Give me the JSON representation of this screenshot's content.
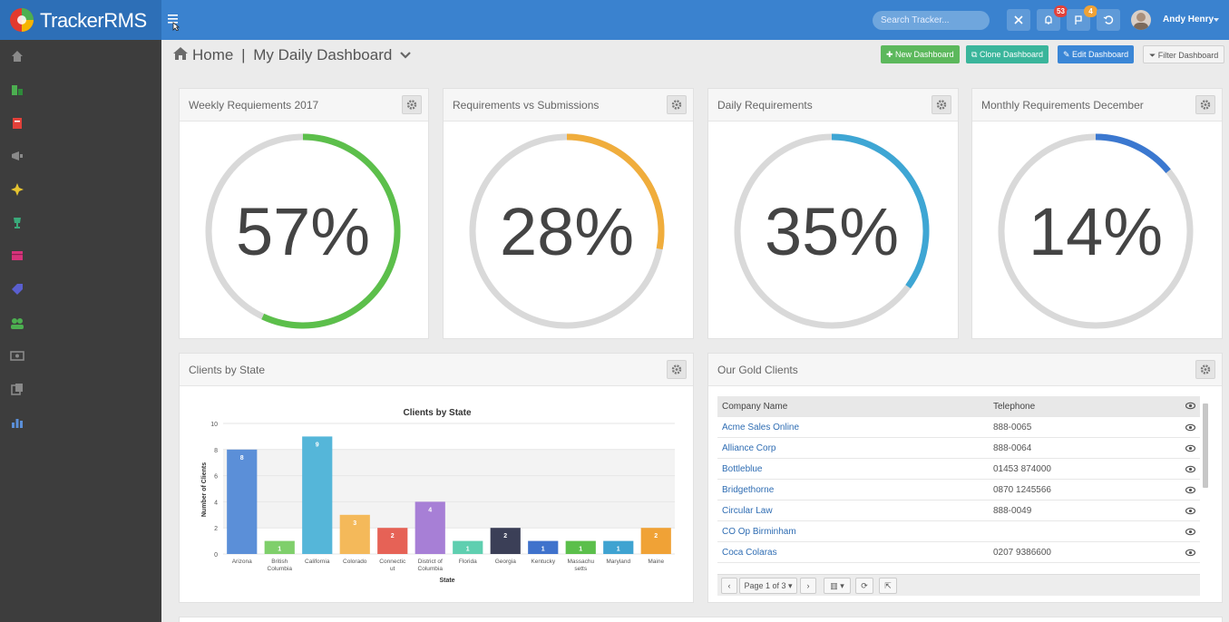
{
  "app": {
    "name": "TrackerRMS"
  },
  "topbar": {
    "search_placeholder": "Search Tracker...",
    "notifications_count": "53",
    "flags_count": "4",
    "user_name": "Andy Henry"
  },
  "breadcrumb": {
    "home": "Home",
    "separator": "|",
    "page": "My Daily Dashboard"
  },
  "actions": {
    "new_dashboard": "New Dashboard",
    "clone_dashboard": "Clone Dashboard",
    "edit_dashboard": "Edit Dashboard",
    "filter_dashboard": "Filter Dashboard"
  },
  "gauges": [
    {
      "title": "Weekly Requiements 2017",
      "percent": 57,
      "label": "57%",
      "color": "#5cbf4b"
    },
    {
      "title": "Requirements vs Submissions",
      "percent": 28,
      "label": "28%",
      "color": "#f0ad3c"
    },
    {
      "title": "Daily Requirements",
      "percent": 35,
      "label": "35%",
      "color": "#3ea6d4"
    },
    {
      "title": "Monthly Requirements December",
      "percent": 14,
      "label": "14%",
      "color": "#3b78d0"
    }
  ],
  "clients_panel": {
    "title": "Clients by State"
  },
  "chart_data": {
    "type": "bar",
    "title": "Clients by State",
    "xlabel": "State",
    "ylabel": "Number of Clients",
    "ylim": [
      0,
      10
    ],
    "yticks": [
      0,
      2,
      4,
      6,
      8,
      10
    ],
    "grid": true,
    "categories": [
      "Arizona",
      "British Columbia",
      "California",
      "Colorado",
      "Connecticut",
      "District of Columbia",
      "Florida",
      "Georgia",
      "Kentucky",
      "Massachusetts",
      "Maryland",
      "Maine"
    ],
    "category_labels": [
      [
        "Arizona"
      ],
      [
        "British",
        "Columbia"
      ],
      [
        "California"
      ],
      [
        "Colorado"
      ],
      [
        "Connectic",
        "ut"
      ],
      [
        "District of",
        "Columbia"
      ],
      [
        "Florida"
      ],
      [
        "Georgia"
      ],
      [
        "Kentucky"
      ],
      [
        "Massachu",
        "setts"
      ],
      [
        "Maryland"
      ],
      [
        "Maine"
      ]
    ],
    "values": [
      8,
      1,
      9,
      3,
      2,
      4,
      1,
      2,
      1,
      1,
      1,
      2
    ],
    "colors": [
      "#5b8fd8",
      "#7fcf6b",
      "#55b6d9",
      "#f4b95a",
      "#e66256",
      "#a77fd6",
      "#5fcfb0",
      "#3b3f57",
      "#3f72cc",
      "#5bbf4b",
      "#3fa3d1",
      "#f0a236"
    ]
  },
  "gold_panel": {
    "title": "Our Gold Clients",
    "columns": [
      "Company Name",
      "Telephone"
    ],
    "rows": [
      {
        "company": "Acme Sales Online",
        "phone": "888-0065"
      },
      {
        "company": "Alliance Corp",
        "phone": "888-0064"
      },
      {
        "company": "Bottleblue",
        "phone": "01453 874000"
      },
      {
        "company": "Bridgethorne",
        "phone": "0870 1245566"
      },
      {
        "company": "Circular Law",
        "phone": "888-0049"
      },
      {
        "company": "CO Op Birminham",
        "phone": ""
      },
      {
        "company": "Coca Colaras",
        "phone": "0207 9386600"
      }
    ],
    "pager": {
      "page_label": "Page 1 of 3"
    }
  },
  "colors": {
    "topbar": "#3a82cf",
    "sidebar": "#3d3d3d",
    "link": "#2f6db3",
    "btn_green": "#5cb85c",
    "btn_teal": "#3ab59b",
    "btn_blue": "#3a86d6"
  }
}
